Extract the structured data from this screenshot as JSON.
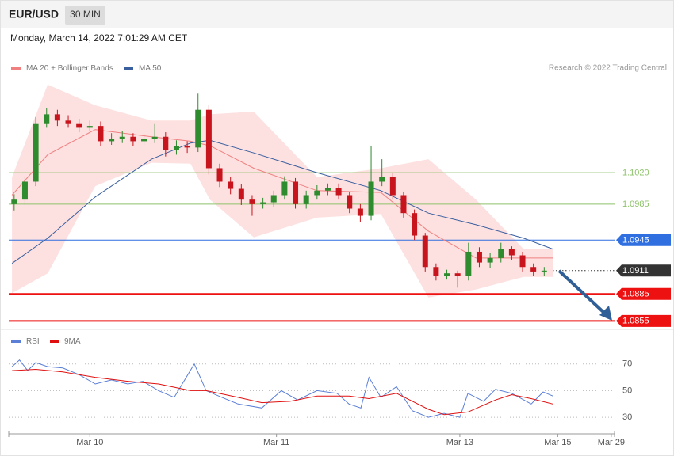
{
  "header": {
    "symbol": "EUR/USD",
    "timeframe": "30 MIN",
    "timestamp": "Monday, March 14, 2022 7:01:29 AM CET"
  },
  "chart_data": [
    {
      "type": "candlestick",
      "credit": "Research © 2022 Trading Central",
      "up_color": "#2e8b2e",
      "down_color": "#c8141c",
      "xlim": [
        0,
        112
      ],
      "ylim": [
        1.085,
        1.1125
      ],
      "x": [
        1,
        3,
        5,
        7,
        9,
        11,
        13,
        15,
        17,
        19,
        21,
        23,
        25,
        27,
        29,
        31,
        33,
        35,
        37,
        39,
        41,
        43,
        45,
        47,
        49,
        51,
        53,
        55,
        57,
        59,
        61,
        63,
        65,
        67,
        69,
        71,
        73,
        75,
        77,
        79,
        81,
        83,
        85,
        87,
        89,
        91,
        93,
        95,
        97,
        99
      ],
      "open": [
        1.0985,
        1.099,
        1.101,
        1.1075,
        1.1085,
        1.1078,
        1.1075,
        1.107,
        1.1072,
        1.1055,
        1.1058,
        1.106,
        1.1055,
        1.1058,
        1.106,
        1.1045,
        1.105,
        1.1048,
        1.109,
        1.1025,
        1.101,
        1.1002,
        1.099,
        1.0985,
        1.0987,
        1.0995,
        1.101,
        1.0985,
        1.0995,
        1.1,
        1.1003,
        1.0995,
        1.098,
        1.0972,
        1.101,
        1.1015,
        1.0995,
        1.0975,
        1.095,
        1.0915,
        1.0905,
        1.0908,
        1.0905,
        1.0932,
        1.092,
        1.0925,
        1.0935,
        1.0928,
        1.0915,
        1.091
      ],
      "high": [
        1.0996,
        1.1016,
        1.1082,
        1.1092,
        1.109,
        1.1084,
        1.108,
        1.1078,
        1.1077,
        1.1064,
        1.1066,
        1.1064,
        1.1063,
        1.1075,
        1.1065,
        1.1056,
        1.1055,
        1.1108,
        1.1095,
        1.103,
        1.1015,
        1.1007,
        1.0995,
        1.0992,
        1.1,
        1.1016,
        1.1014,
        1.1,
        1.1006,
        1.1008,
        1.1008,
        1.0999,
        1.0985,
        1.105,
        1.1035,
        1.102,
        1.0999,
        1.0979,
        1.0953,
        1.0919,
        1.0912,
        1.0911,
        1.0942,
        1.0937,
        1.0931,
        1.0942,
        1.0938,
        1.0932,
        1.0919,
        1.0915
      ],
      "low": [
        1.0978,
        1.0984,
        1.1005,
        1.107,
        1.1072,
        1.107,
        1.1065,
        1.1066,
        1.105,
        1.1051,
        1.1053,
        1.105,
        1.1051,
        1.1053,
        1.1038,
        1.104,
        1.1042,
        1.1043,
        1.1018,
        1.1004,
        1.0996,
        1.0984,
        1.0972,
        1.098,
        1.0982,
        1.099,
        1.098,
        1.098,
        1.099,
        1.0995,
        1.099,
        1.0975,
        1.0965,
        1.0967,
        1.1005,
        1.099,
        1.097,
        1.0945,
        1.091,
        1.09,
        1.0901,
        1.0892,
        1.09,
        1.0915,
        1.0914,
        1.092,
        1.0923,
        1.091,
        1.0905,
        1.0905
      ],
      "close": [
        1.099,
        1.101,
        1.1075,
        1.1085,
        1.1078,
        1.1075,
        1.107,
        1.1072,
        1.1055,
        1.1058,
        1.106,
        1.1055,
        1.1058,
        1.106,
        1.1045,
        1.105,
        1.1048,
        1.109,
        1.1025,
        1.101,
        1.1002,
        1.099,
        1.0985,
        1.0987,
        1.0995,
        1.101,
        1.0985,
        1.0995,
        1.1,
        1.1003,
        1.0995,
        1.098,
        1.0972,
        1.101,
        1.1015,
        1.0995,
        1.0975,
        1.095,
        1.0915,
        1.0905,
        1.0908,
        1.0905,
        1.0932,
        1.092,
        1.0925,
        1.0935,
        1.0928,
        1.0915,
        1.091,
        1.0911
      ],
      "series": [
        {
          "name": "MA 20 + Bollinger Bands",
          "color": "#f08080",
          "band_color": "#fde0e0",
          "x": [
            0.6,
            7.2,
            16,
            26.4,
            33.6,
            37.2,
            45.3,
            57,
            68.8,
            77.6,
            86.4,
            95.2,
            100.6
          ],
          "values": [
            1.0995,
            1.104,
            1.1068,
            1.106,
            1.1055,
            1.105,
            1.1025,
            1.1,
            1.0998,
            1.0955,
            1.0925,
            1.0925,
            1.0925
          ],
          "upper": [
            1.1015,
            1.1118,
            1.1095,
            1.1078,
            1.1078,
            1.1085,
            1.1088,
            1.1015,
            1.1025,
            1.1035,
            1.099,
            1.0935,
            1.0935
          ],
          "lower": [
            1.0886,
            1.0908,
            1.1005,
            1.1031,
            1.103,
            1.099,
            1.0948,
            1.097,
            1.0974,
            1.0881,
            1.089,
            1.0904,
            1.0904
          ]
        },
        {
          "name": "MA 50",
          "color": "#3a5f9f",
          "x": [
            0.6,
            7.2,
            16,
            26.4,
            33.6,
            37.2,
            45.3,
            57,
            68.8,
            77.6,
            86.4,
            95.2,
            100.6
          ],
          "values": [
            1.0919,
            1.0947,
            1.0993,
            1.1035,
            1.1053,
            1.1056,
            1.1042,
            1.102,
            1.1,
            1.0975,
            1.0962,
            1.0947,
            1.0935
          ]
        }
      ],
      "levels": [
        {
          "value": 1.102,
          "label": "1.1020",
          "color": "#8dc36a",
          "tag": false,
          "dashed": false,
          "width": 1
        },
        {
          "value": 1.0985,
          "color": "#8dc36a",
          "tag": false,
          "dashed": false,
          "width": 1
        },
        {
          "value": 1.0945,
          "color": "#2f6fe0",
          "tag": true,
          "dashed": false,
          "width": 1
        },
        {
          "value": 1.0911,
          "color": "#333333",
          "tag": true,
          "dashed": true,
          "width": 1
        },
        {
          "value": 1.0885,
          "color": "#ee1111",
          "tag": true,
          "dashed": false,
          "width": 2
        },
        {
          "value": 1.0855,
          "color": "#ee1111",
          "tag": true,
          "dashed": false,
          "width": 2
        }
      ]
    },
    {
      "type": "line",
      "xlim": [
        0,
        112
      ],
      "ylim": [
        20,
        90
      ],
      "yticks": [
        30,
        50,
        70
      ],
      "xticks": [
        {
          "value": 15,
          "label": "Mar 10"
        },
        {
          "value": 49.5,
          "label": "Mar 11"
        },
        {
          "value": 83.4,
          "label": "Mar 13"
        },
        {
          "value": 101.5,
          "label": "Mar 15"
        },
        {
          "value": 111.4,
          "label": "Mar 29"
        }
      ],
      "series": [
        {
          "name": "RSI",
          "color": "#5b7fd6",
          "x": [
            0.6,
            2,
            3.5,
            5,
            7.2,
            10,
            13,
            16,
            19,
            22,
            24.8,
            27.7,
            30.6,
            34.3,
            36.5,
            39.4,
            42.4,
            46.8,
            50.4,
            53.4,
            57,
            60.7,
            62.9,
            65.1,
            66.6,
            68.8,
            71.7,
            74.6,
            77.6,
            80.5,
            83.4,
            84.9,
            87.8,
            90,
            93,
            96.6,
            98.8,
            100.6
          ],
          "values": [
            68,
            73,
            65,
            71,
            68,
            67,
            62,
            55,
            58,
            55,
            57,
            50,
            45,
            70,
            50,
            45,
            40,
            37,
            50,
            43,
            50,
            48,
            40,
            37,
            60,
            45,
            53,
            35,
            30,
            33,
            30,
            48,
            42,
            51,
            48,
            40,
            49,
            46
          ]
        },
        {
          "name": "9MA",
          "color": "#e01010",
          "x": [
            0.6,
            5,
            10,
            16,
            22,
            27.7,
            33.6,
            36.5,
            42.4,
            46.8,
            52,
            57,
            62.9,
            66.6,
            71.7,
            77.6,
            80.5,
            84.9,
            90,
            93,
            96.6,
            100.6
          ],
          "values": [
            65,
            66,
            64,
            60,
            57,
            55,
            50,
            50,
            45,
            41,
            42,
            46,
            46,
            44,
            48,
            36,
            32,
            34,
            43,
            47,
            44,
            40
          ]
        }
      ]
    }
  ]
}
